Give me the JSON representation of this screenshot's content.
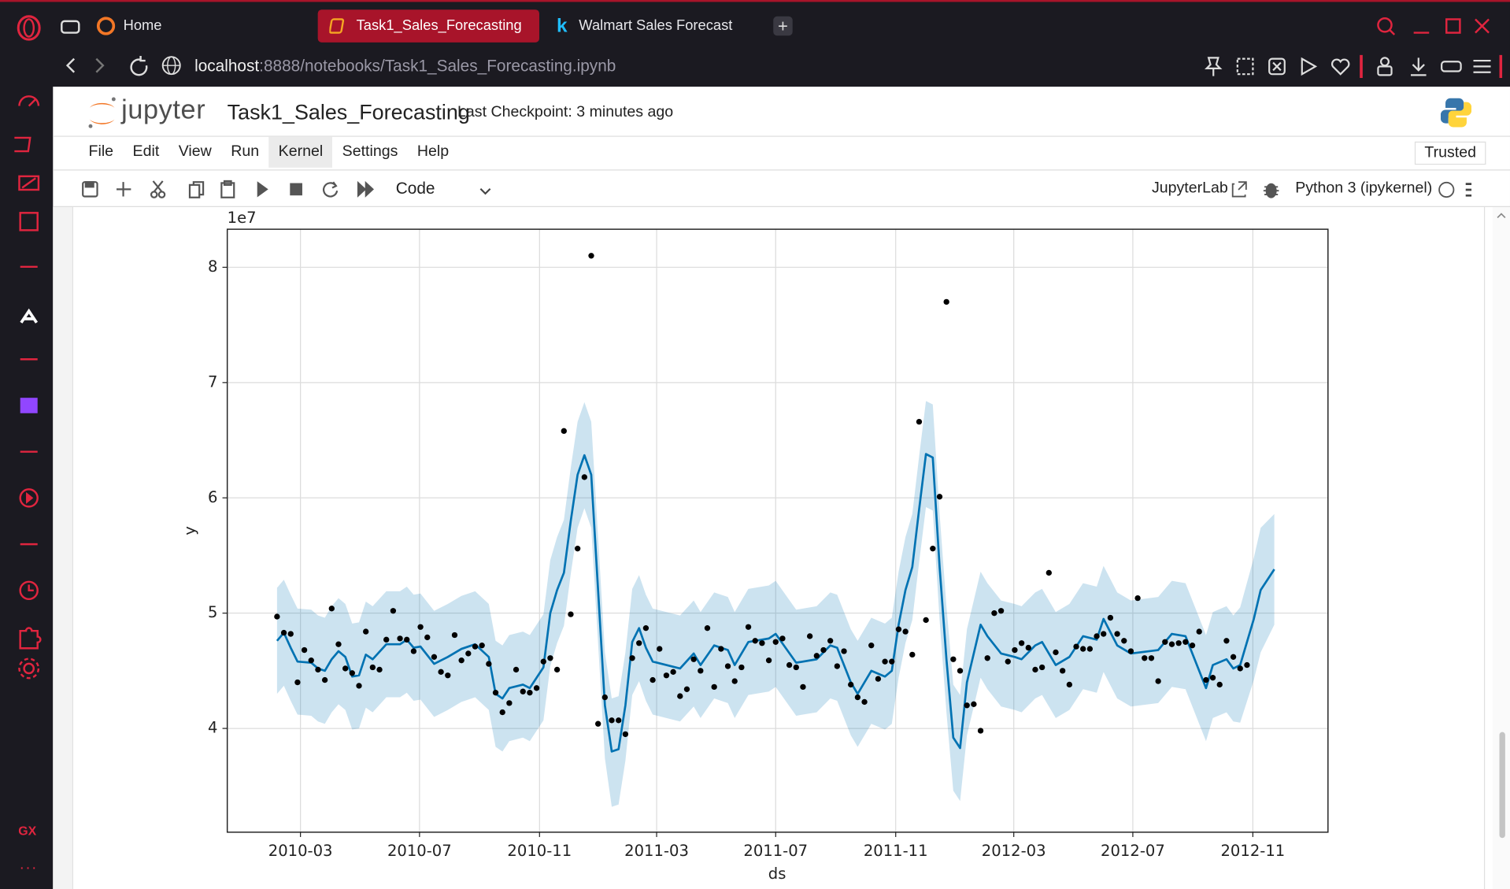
{
  "browser": {
    "tabs": [
      "Home",
      "Task1_Sales_Forecasting",
      "Walmart Sales Forecast"
    ],
    "url_host": "localhost",
    "url_rest": ":8888/notebooks/Task1_Sales_Forecasting.ipynb",
    "sidebar_badge": "GX"
  },
  "jupyter": {
    "logo_text": "jupyter",
    "notebook_name": "Task1_Sales_Forecasting",
    "checkpoint": "Last Checkpoint: 3 minutes ago",
    "menu": [
      "File",
      "Edit",
      "View",
      "Run",
      "Kernel",
      "Settings",
      "Help"
    ],
    "trusted": "Trusted",
    "cell_type": "Code",
    "lab_link": "JupyterLab",
    "kernel": "Python 3 (ipykernel)"
  },
  "chart_data": {
    "type": "line",
    "offset_label": "1e7",
    "xlabel": "ds",
    "ylabel": "y",
    "grid": true,
    "xlim": [
      14594,
      15722
    ],
    "ylim": [
      3.1,
      8.33
    ],
    "xticks": [
      {
        "value": 14669,
        "label": "2010-03"
      },
      {
        "value": 14791,
        "label": "2010-07"
      },
      {
        "value": 14914,
        "label": "2010-11"
      },
      {
        "value": 15034,
        "label": "2011-03"
      },
      {
        "value": 15156,
        "label": "2011-07"
      },
      {
        "value": 15279,
        "label": "2011-11"
      },
      {
        "value": 15400,
        "label": "2012-03"
      },
      {
        "value": 15522,
        "label": "2012-07"
      },
      {
        "value": 15645,
        "label": "2012-11"
      }
    ],
    "yticks": [
      4,
      5,
      6,
      7,
      8
    ],
    "points": {
      "color": "#000000",
      "x": [
        14645,
        14652,
        14659,
        14666,
        14673,
        14680,
        14687,
        14694,
        14701,
        14708,
        14715,
        14722,
        14729,
        14736,
        14743,
        14750,
        14757,
        14764,
        14771,
        14778,
        14785,
        14792,
        14799,
        14806,
        14813,
        14820,
        14827,
        14834,
        14841,
        14848,
        14855,
        14862,
        14869,
        14876,
        14883,
        14890,
        14897,
        14904,
        14911,
        14918,
        14925,
        14932,
        14939,
        14946,
        14953,
        14960,
        14967,
        14974,
        14981,
        14988,
        14995,
        15002,
        15009,
        15016,
        15023,
        15030,
        15037,
        15044,
        15051,
        15058,
        15065,
        15072,
        15079,
        15086,
        15093,
        15100,
        15107,
        15114,
        15121,
        15128,
        15135,
        15142,
        15149,
        15156,
        15163,
        15170,
        15177,
        15184,
        15191,
        15198,
        15205,
        15212,
        15219,
        15226,
        15233,
        15240,
        15247,
        15254,
        15261,
        15268,
        15275,
        15282,
        15289,
        15296,
        15303,
        15310,
        15317,
        15324,
        15331,
        15338,
        15345,
        15352,
        15359,
        15366,
        15373,
        15380,
        15387,
        15394,
        15401,
        15408,
        15415,
        15422,
        15429,
        15436,
        15443,
        15450,
        15457,
        15464,
        15471,
        15478,
        15485,
        15492,
        15499,
        15506,
        15513,
        15520,
        15527,
        15534,
        15541,
        15548,
        15555,
        15562,
        15569,
        15576,
        15583,
        15590,
        15597,
        15604,
        15611,
        15618,
        15625,
        15632,
        15639
      ],
      "values": [
        4.97,
        4.83,
        4.82,
        4.4,
        4.68,
        4.59,
        4.51,
        4.42,
        5.04,
        4.73,
        4.52,
        4.48,
        4.37,
        4.84,
        4.53,
        4.51,
        4.77,
        5.02,
        4.78,
        4.77,
        4.67,
        4.88,
        4.79,
        4.62,
        4.49,
        4.46,
        4.81,
        4.59,
        4.65,
        4.71,
        4.72,
        4.56,
        4.31,
        4.14,
        4.22,
        4.51,
        4.32,
        4.31,
        4.35,
        4.58,
        4.61,
        4.51,
        6.58,
        4.99,
        5.56,
        6.18,
        8.1,
        4.04,
        4.27,
        4.07,
        4.07,
        3.95,
        4.61,
        4.74,
        4.87,
        4.42,
        4.69,
        4.46,
        4.49,
        4.28,
        4.34,
        4.6,
        4.5,
        4.87,
        4.36,
        4.69,
        4.54,
        4.41,
        4.53,
        4.88,
        4.76,
        4.74,
        4.59,
        4.75,
        4.78,
        4.55,
        4.53,
        4.36,
        4.8,
        4.63,
        4.68,
        4.76,
        4.54,
        4.67,
        4.38,
        4.27,
        4.23,
        4.72,
        4.43,
        4.58,
        4.58,
        4.86,
        4.84,
        4.64,
        6.66,
        4.94,
        5.56,
        6.01,
        7.7,
        4.6,
        4.5,
        4.2,
        4.21,
        3.98,
        4.61,
        5.0,
        5.02,
        4.58,
        4.68,
        4.74,
        4.7,
        4.51,
        4.53,
        5.35,
        4.66,
        4.5,
        4.38,
        4.71,
        4.69,
        4.69,
        4.8,
        4.82,
        4.96,
        4.82,
        4.76,
        4.67,
        5.13,
        4.61,
        4.61,
        4.41,
        4.75,
        4.73,
        4.74,
        4.75,
        4.72,
        4.84,
        4.42,
        4.44,
        4.38,
        4.76,
        4.62,
        4.52,
        4.55
      ]
    },
    "forecast": {
      "color": "#0072b2",
      "x": [
        14645,
        14652,
        14659,
        14666,
        14680,
        14687,
        14694,
        14701,
        14708,
        14715,
        14722,
        14729,
        14736,
        14743,
        14757,
        14771,
        14778,
        14785,
        14792,
        14806,
        14820,
        14834,
        14848,
        14862,
        14869,
        14876,
        14883,
        14897,
        14904,
        14918,
        14925,
        14932,
        14939,
        14946,
        14953,
        14960,
        14967,
        14974,
        14981,
        14988,
        14995,
        15002,
        15009,
        15016,
        15023,
        15030,
        15044,
        15058,
        15072,
        15079,
        15093,
        15107,
        15114,
        15128,
        15149,
        15156,
        15177,
        15198,
        15212,
        15219,
        15233,
        15240,
        15254,
        15268,
        15275,
        15282,
        15289,
        15296,
        15303,
        15310,
        15317,
        15324,
        15331,
        15338,
        15345,
        15352,
        15366,
        15373,
        15387,
        15401,
        15408,
        15422,
        15429,
        15443,
        15457,
        15471,
        15485,
        15492,
        15506,
        15520,
        15548,
        15562,
        15576,
        15590,
        15597,
        15604,
        15618,
        15625,
        15632,
        15646,
        15653,
        15667
      ],
      "values": [
        4.76,
        4.83,
        4.7,
        4.58,
        4.57,
        4.52,
        4.5,
        4.6,
        4.67,
        4.62,
        4.45,
        4.46,
        4.64,
        4.6,
        4.73,
        4.73,
        4.77,
        4.7,
        4.71,
        4.56,
        4.62,
        4.69,
        4.73,
        4.62,
        4.3,
        4.26,
        4.35,
        4.38,
        4.35,
        4.53,
        5.0,
        5.2,
        5.35,
        5.8,
        6.2,
        6.37,
        6.2,
        5.2,
        4.2,
        3.8,
        3.82,
        4.2,
        4.75,
        4.87,
        4.7,
        4.58,
        4.55,
        4.52,
        4.65,
        4.55,
        4.72,
        4.68,
        4.55,
        4.75,
        4.78,
        4.82,
        4.57,
        4.6,
        4.72,
        4.7,
        4.4,
        4.3,
        4.5,
        4.45,
        4.5,
        4.9,
        5.2,
        5.4,
        5.9,
        6.38,
        6.35,
        5.4,
        4.6,
        3.92,
        3.83,
        4.4,
        4.9,
        4.8,
        4.65,
        4.62,
        4.6,
        4.72,
        4.75,
        4.55,
        4.62,
        4.8,
        4.77,
        4.95,
        4.72,
        4.65,
        4.68,
        4.82,
        4.8,
        4.5,
        4.35,
        4.55,
        4.6,
        4.52,
        4.55,
        4.95,
        5.2,
        5.38
      ],
      "lower": [
        4.3,
        4.37,
        4.24,
        4.12,
        4.11,
        4.06,
        4.04,
        4.14,
        4.21,
        4.16,
        3.99,
        4.0,
        4.18,
        4.14,
        4.27,
        4.27,
        4.31,
        4.24,
        4.25,
        4.1,
        4.16,
        4.23,
        4.27,
        4.16,
        3.84,
        3.8,
        3.89,
        3.92,
        3.89,
        4.07,
        4.54,
        4.74,
        4.89,
        5.34,
        5.74,
        5.91,
        5.74,
        4.74,
        3.74,
        3.32,
        3.34,
        3.72,
        4.29,
        4.41,
        4.24,
        4.12,
        4.09,
        4.06,
        4.19,
        4.09,
        4.26,
        4.22,
        4.09,
        4.29,
        4.32,
        4.36,
        4.11,
        4.14,
        4.26,
        4.24,
        3.94,
        3.84,
        4.04,
        3.99,
        4.04,
        4.44,
        4.74,
        4.94,
        5.44,
        5.92,
        5.89,
        4.94,
        4.14,
        3.46,
        3.37,
        3.94,
        4.44,
        4.34,
        4.19,
        4.16,
        4.14,
        4.26,
        4.29,
        4.09,
        4.16,
        4.34,
        4.31,
        4.49,
        4.26,
        4.19,
        4.22,
        4.36,
        4.34,
        4.04,
        3.89,
        4.09,
        4.14,
        4.06,
        4.05,
        4.42,
        4.66,
        4.9
      ],
      "upper": [
        5.22,
        5.29,
        5.16,
        5.04,
        5.03,
        4.98,
        4.96,
        5.06,
        5.13,
        5.08,
        4.91,
        4.92,
        5.1,
        5.06,
        5.19,
        5.19,
        5.23,
        5.16,
        5.17,
        5.02,
        5.08,
        5.15,
        5.19,
        5.08,
        4.76,
        4.72,
        4.81,
        4.84,
        4.81,
        4.99,
        5.46,
        5.66,
        5.81,
        6.26,
        6.66,
        6.83,
        6.66,
        5.66,
        4.66,
        4.26,
        4.28,
        4.66,
        5.21,
        5.33,
        5.16,
        5.04,
        5.01,
        4.98,
        5.11,
        5.01,
        5.18,
        5.14,
        5.01,
        5.21,
        5.24,
        5.28,
        5.03,
        5.06,
        5.18,
        5.16,
        4.86,
        4.76,
        4.96,
        4.91,
        4.96,
        5.36,
        5.66,
        5.86,
        6.36,
        6.84,
        6.81,
        5.86,
        5.06,
        4.38,
        4.29,
        4.86,
        5.36,
        5.26,
        5.11,
        5.08,
        5.06,
        5.18,
        5.21,
        5.01,
        5.08,
        5.26,
        5.23,
        5.41,
        5.18,
        5.11,
        5.14,
        5.28,
        5.26,
        4.96,
        4.81,
        5.01,
        5.06,
        4.98,
        5.05,
        5.48,
        5.74,
        5.86
      ]
    }
  }
}
